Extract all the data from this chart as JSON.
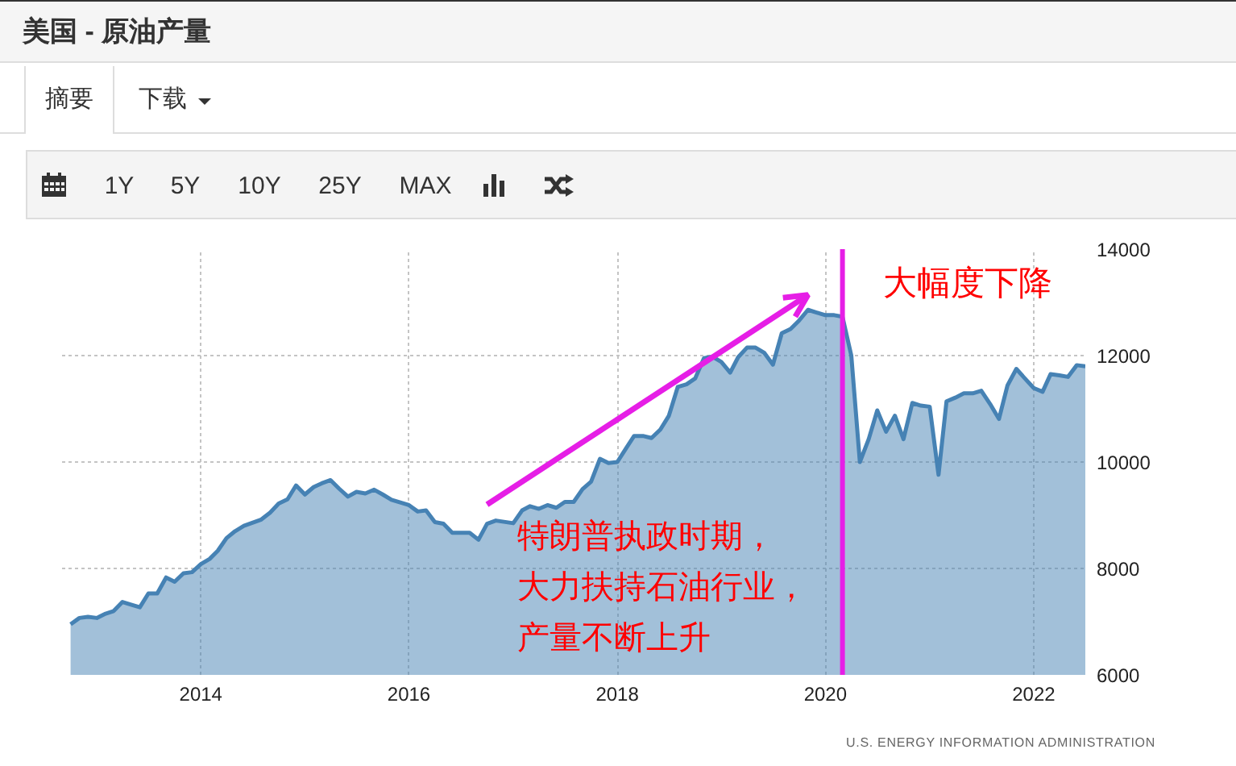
{
  "chart_data": {
    "type": "area",
    "title": "美国 - 原油产量",
    "x": [
      "2012-10",
      "2012-11",
      "2012-12",
      "2013-01",
      "2013-02",
      "2013-03",
      "2013-04",
      "2013-05",
      "2013-06",
      "2013-07",
      "2013-08",
      "2013-09",
      "2013-10",
      "2013-11",
      "2013-12",
      "2014-01",
      "2014-02",
      "2014-03",
      "2014-04",
      "2014-05",
      "2014-06",
      "2014-08",
      "2014-09",
      "2014-10",
      "2014-11",
      "2014-12",
      "2015-01",
      "2015-02",
      "2015-03",
      "2015-04",
      "2015-05",
      "2015-06",
      "2015-07",
      "2015-08",
      "2015-09",
      "2015-10",
      "2015-11",
      "2016-01",
      "2016-02",
      "2016-03",
      "2016-04",
      "2016-05",
      "2016-06",
      "2016-08",
      "2016-09",
      "2016-10",
      "2016-11",
      "2017-01",
      "2017-02",
      "2017-03",
      "2017-04",
      "2017-05",
      "2017-06",
      "2017-07",
      "2017-08",
      "2017-09",
      "2017-10",
      "2017-11",
      "2017-12",
      "2018-01",
      "2018-02",
      "2018-03",
      "2018-04",
      "2018-05",
      "2018-06",
      "2018-07",
      "2018-08",
      "2018-09",
      "2018-10",
      "2018-11",
      "2018-12",
      "2019-01",
      "2019-02",
      "2019-03",
      "2019-04",
      "2019-05",
      "2019-06",
      "2019-07",
      "2019-08",
      "2019-09",
      "2019-10",
      "2019-11",
      "2019-12",
      "2020-01",
      "2020-02",
      "2020-03",
      "2020-04",
      "2020-05",
      "2020-06",
      "2020-07",
      "2020-08",
      "2020-09",
      "2020-10",
      "2020-11",
      "2020-12",
      "2021-01",
      "2021-02",
      "2021-03",
      "2021-04",
      "2021-05",
      "2021-06",
      "2021-07",
      "2021-08",
      "2021-09",
      "2021-10",
      "2021-11",
      "2021-12",
      "2022-01",
      "2022-02",
      "2022-03",
      "2022-04",
      "2022-05",
      "2022-06",
      "2022-07"
    ],
    "values": [
      6950,
      7070,
      7090,
      7070,
      7150,
      7200,
      7370,
      7320,
      7270,
      7530,
      7530,
      7830,
      7750,
      7910,
      7930,
      8080,
      8180,
      8330,
      8570,
      8700,
      8800,
      8920,
      9050,
      9220,
      9300,
      9560,
      9390,
      9530,
      9600,
      9660,
      9500,
      9350,
      9440,
      9410,
      9480,
      9390,
      9290,
      9190,
      9070,
      9090,
      8870,
      8840,
      8670,
      8670,
      8540,
      8840,
      8900,
      8850,
      9090,
      9170,
      9120,
      9190,
      9140,
      9250,
      9250,
      9490,
      9630,
      10060,
      9980,
      10000,
      10260,
      10490,
      10490,
      10450,
      10610,
      10870,
      11410,
      11460,
      11570,
      11950,
      11980,
      11880,
      11680,
      11970,
      12150,
      12150,
      12050,
      11830,
      12420,
      12500,
      12660,
      12860,
      12810,
      12760,
      12760,
      12730,
      12000,
      10000,
      10430,
      10970,
      10570,
      10870,
      10430,
      11110,
      11060,
      11040,
      9760,
      11140,
      11210,
      11290,
      11290,
      11340,
      11090,
      10810,
      11440,
      11750,
      11570,
      11390,
      11320,
      11650,
      11630,
      11600,
      11820,
      11800
    ],
    "color": "#4682b4",
    "xlim": [
      "2012-09",
      "2022-07"
    ],
    "xticks": [
      "2014",
      "2016",
      "2018",
      "2020",
      "2022"
    ],
    "ylim": [
      6000,
      14000
    ],
    "yticks": [
      6000,
      8000,
      10000,
      12000,
      14000
    ],
    "grid": true,
    "ref_lines": [
      {
        "axis": "x",
        "value": "2020-03",
        "label": "大幅度下降",
        "color": "#e61ee6"
      }
    ],
    "annotations": [
      {
        "text": "特朗普执政时期，大力扶持石油行业，产量不断上升",
        "x": "2016-10",
        "y": 8840
      },
      "摘要",
      "下载",
      "1Y",
      "5Y",
      "10Y",
      "25Y",
      "MAX",
      "U.S. ENERGY INFORMATION ADMINISTRATION"
    ]
  }
}
